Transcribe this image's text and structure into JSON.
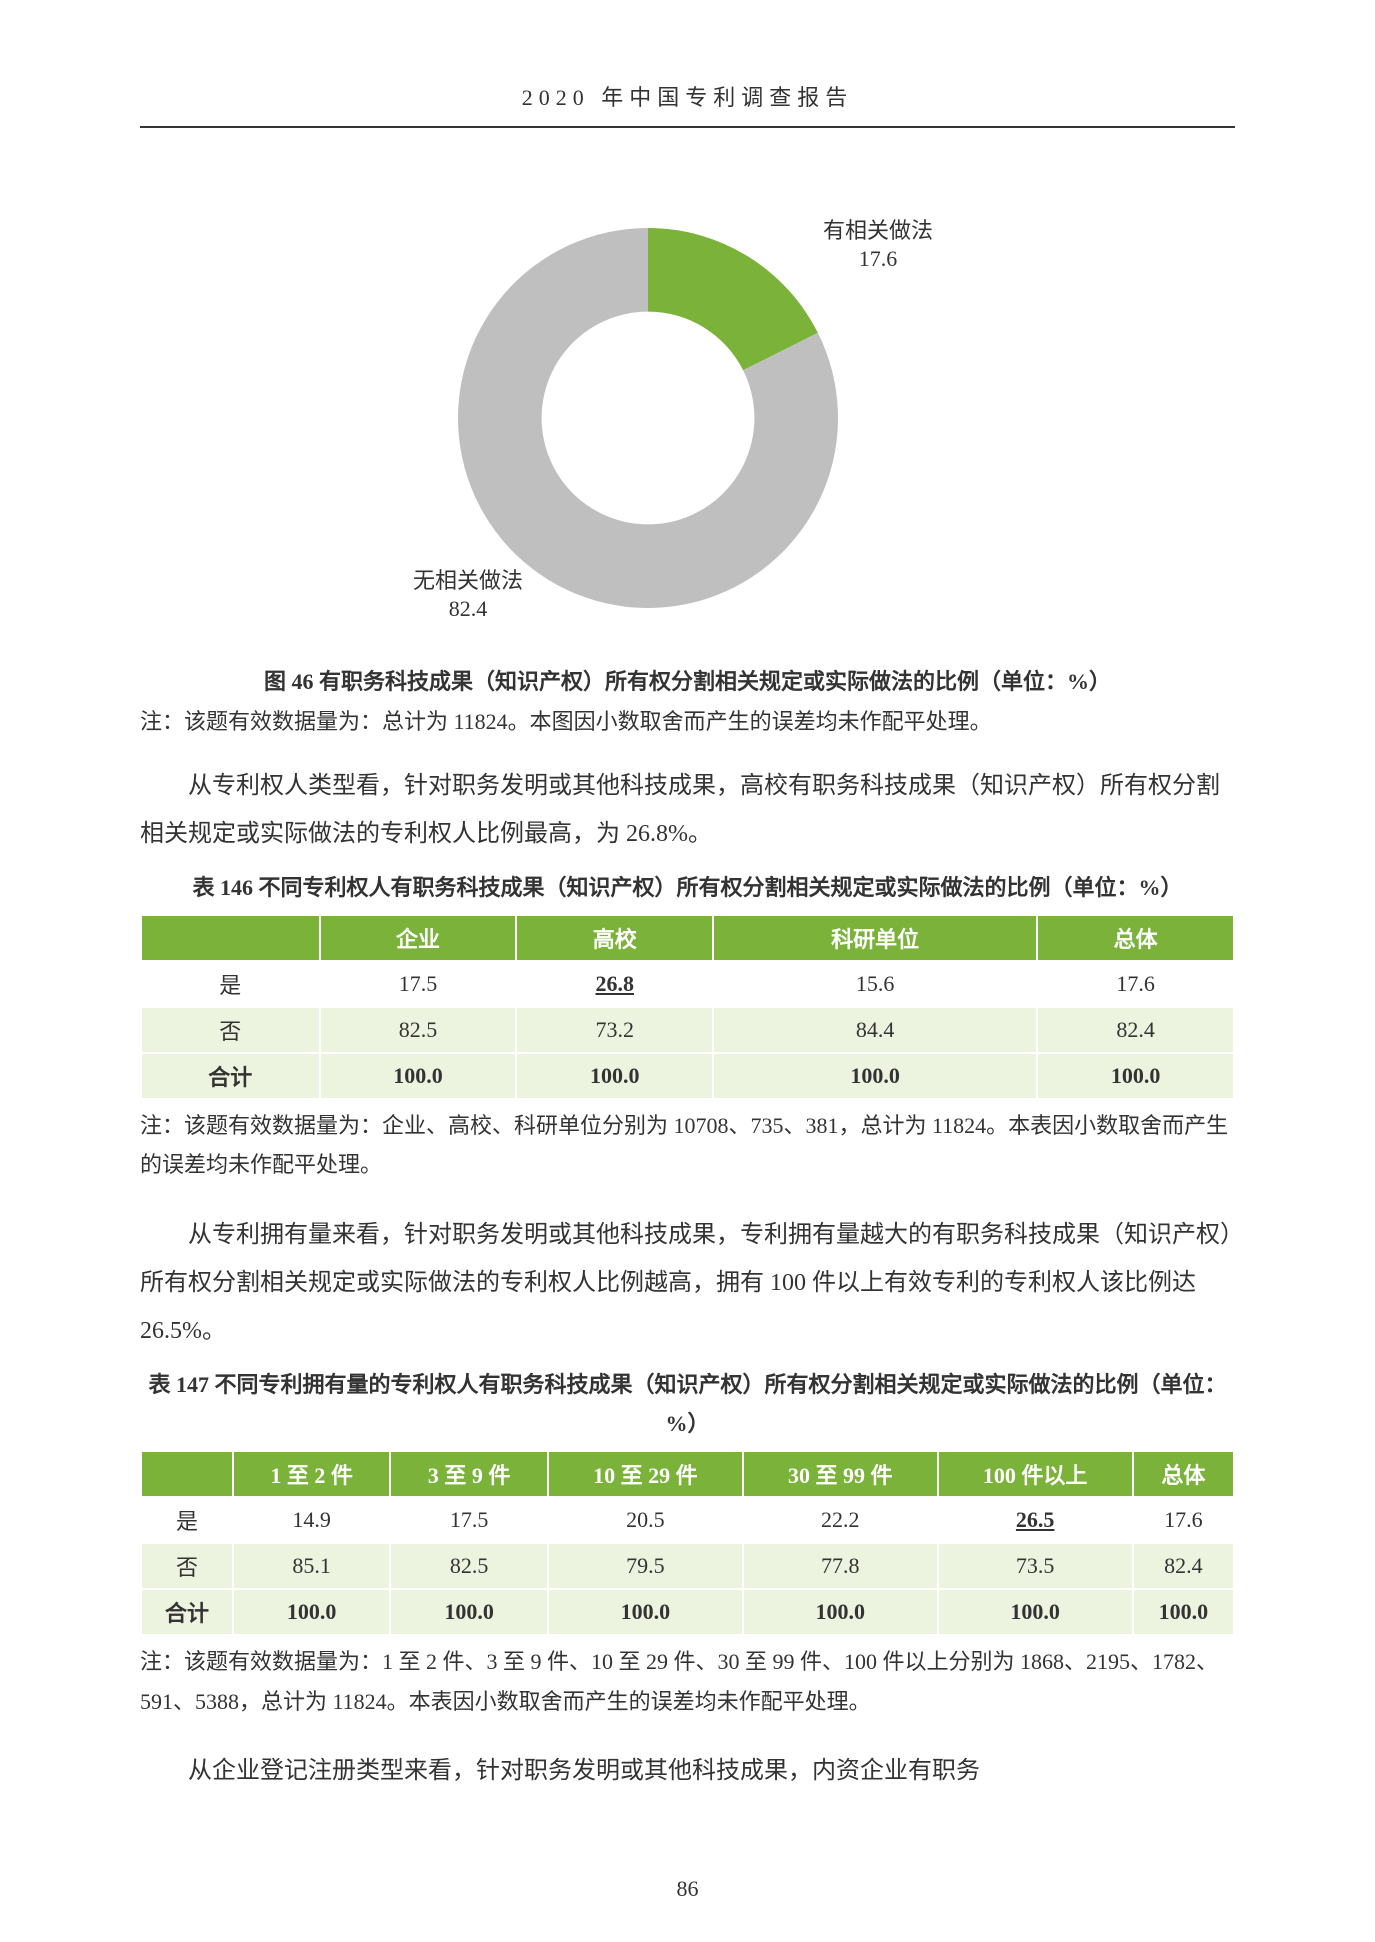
{
  "header": {
    "title": "2020 年中国专利调查报告"
  },
  "donut": {
    "type": "donut",
    "slices": [
      {
        "label": "有相关做法",
        "value": 17.6,
        "color": "#7bb33a"
      },
      {
        "label": "无相关做法",
        "value": 82.4,
        "color": "#bfbfbf"
      }
    ],
    "inner_radius_ratio": 0.56,
    "background_color": "#ffffff",
    "label_fontsize": 22,
    "label_color": "#333333",
    "start_angle_deg": -90,
    "caption": "图 46 有职务科技成果（知识产权）所有权分割相关规定或实际做法的比例（单位：%）",
    "note": "注：该题有效数据量为：总计为 11824。本图因小数取舍而产生的误差均未作配平处理。"
  },
  "para1": "从专利权人类型看，针对职务发明或其他科技成果，高校有职务科技成果（知识产权）所有权分割相关规定或实际做法的专利权人比例最高，为 26.8%。",
  "table146": {
    "title": "表 146 不同专利权人有职务科技成果（知识产权）所有权分割相关规定或实际做法的比例（单位：%）",
    "header_bg": "#7bb33a",
    "header_color": "#ffffff",
    "row_alt_bg": "#ecf3df",
    "row_bg": "#ffffff",
    "columns": [
      "",
      "企业",
      "高校",
      "科研单位",
      "总体"
    ],
    "rows": [
      {
        "label": "是",
        "values": [
          "17.5",
          "26.8",
          "15.6",
          "17.6"
        ],
        "underline_idx": 1
      },
      {
        "label": "否",
        "values": [
          "82.5",
          "73.2",
          "84.4",
          "82.4"
        ]
      },
      {
        "label": "合计",
        "values": [
          "100.0",
          "100.0",
          "100.0",
          "100.0"
        ],
        "total": true
      }
    ],
    "note": "注：该题有效数据量为：企业、高校、科研单位分别为 10708、735、381，总计为 11824。本表因小数取舍而产生的误差均未作配平处理。"
  },
  "para2": "从专利拥有量来看，针对职务发明或其他科技成果，专利拥有量越大的有职务科技成果（知识产权）所有权分割相关规定或实际做法的专利权人比例越高，拥有 100 件以上有效专利的专利权人该比例达 26.5%。",
  "table147": {
    "title": "表 147 不同专利拥有量的专利权人有职务科技成果（知识产权）所有权分割相关规定或实际做法的比例（单位：%）",
    "header_bg": "#7bb33a",
    "header_color": "#ffffff",
    "row_alt_bg": "#ecf3df",
    "row_bg": "#ffffff",
    "columns": [
      "",
      "1 至 2 件",
      "3 至 9 件",
      "10 至 29 件",
      "30 至 99 件",
      "100 件以上",
      "总体"
    ],
    "rows": [
      {
        "label": "是",
        "values": [
          "14.9",
          "17.5",
          "20.5",
          "22.2",
          "26.5",
          "17.6"
        ],
        "underline_idx": 4
      },
      {
        "label": "否",
        "values": [
          "85.1",
          "82.5",
          "79.5",
          "77.8",
          "73.5",
          "82.4"
        ]
      },
      {
        "label": "合计",
        "values": [
          "100.0",
          "100.0",
          "100.0",
          "100.0",
          "100.0",
          "100.0"
        ],
        "total": true
      }
    ],
    "note": "注：该题有效数据量为：1 至 2 件、3 至 9 件、10 至 29 件、30 至 99 件、100 件以上分别为 1868、2195、1782、591、5388，总计为 11824。本表因小数取舍而产生的误差均未作配平处理。"
  },
  "para3": "从企业登记注册类型来看，针对职务发明或其他科技成果，内资企业有职务",
  "page_number": "86"
}
